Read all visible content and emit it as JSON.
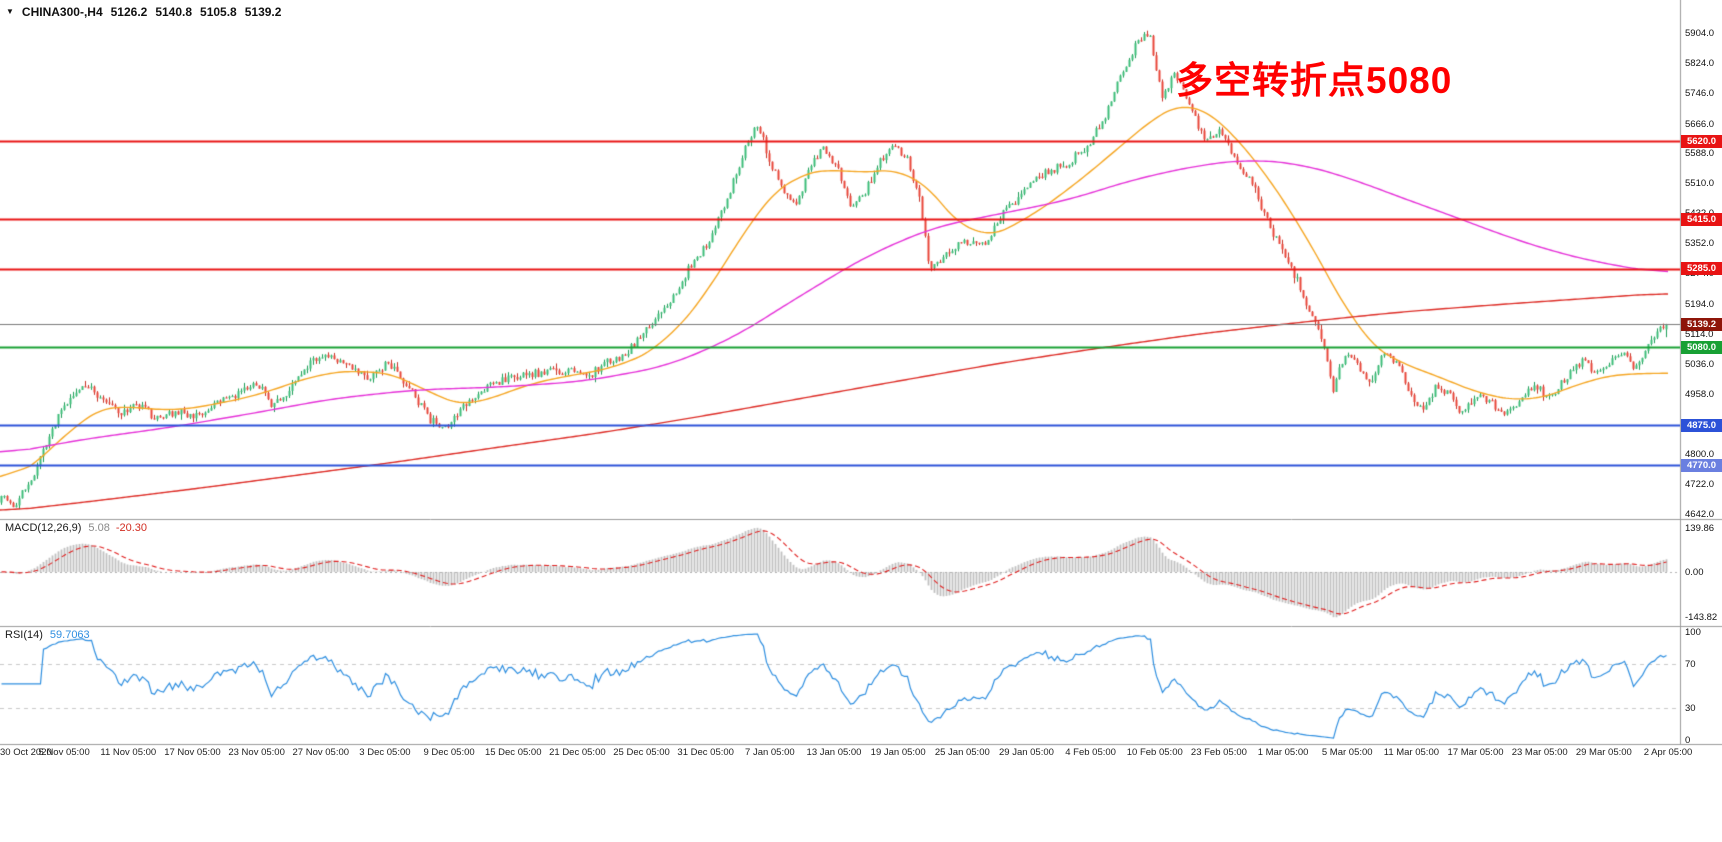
{
  "header": {
    "collapse_icon": "▼",
    "symbol": "CHINA300-,H4",
    "open": "5126.2",
    "high": "5140.8",
    "low": "5105.8",
    "close": "5139.2"
  },
  "annotation": {
    "text": "多空转折点5080",
    "color": "#ff0000"
  },
  "indicators": {
    "macd": {
      "label": "MACD(12,26,9)",
      "value_main": "5.08",
      "value_signal": "-20.30"
    },
    "rsi": {
      "label": "RSI(14)",
      "value": "59.7063"
    }
  },
  "chart_data": {
    "type": "candlestick",
    "title": "CHINA300-,H4",
    "timeframe": "H4",
    "last_ohlc": {
      "open": 5126.2,
      "high": 5140.8,
      "low": 5105.8,
      "close": 5139.2
    },
    "ylim": [
      4629,
      5985
    ],
    "y_ticks": [
      "5904.0",
      "5824.0",
      "5746.0",
      "5666.0",
      "5588.0",
      "5510.0",
      "5432.0",
      "5352.0",
      "5274.0",
      "5194.0",
      "5114.0",
      "5036.0",
      "4958.0",
      "4880.0",
      "4800.0",
      "4722.0",
      "4642.0"
    ],
    "x_labels": [
      "30 Oct 2020",
      "5 Nov 05:00",
      "11 Nov 05:00",
      "17 Nov 05:00",
      "23 Nov 05:00",
      "27 Nov 05:00",
      "3 Dec 05:00",
      "9 Dec 05:00",
      "15 Dec 05:00",
      "21 Dec 05:00",
      "25 Dec 05:00",
      "31 Dec 05:00",
      "7 Jan 05:00",
      "13 Jan 05:00",
      "19 Jan 05:00",
      "25 Jan 05:00",
      "29 Jan 05:00",
      "4 Feb 05:00",
      "10 Feb 05:00",
      "23 Feb 05:00",
      "1 Mar 05:00",
      "5 Mar 05:00",
      "11 Mar 05:00",
      "17 Mar 05:00",
      "23 Mar 05:00",
      "29 Mar 05:00",
      "2 Apr 05:00"
    ],
    "bar_count": 556,
    "price_waypoints": [
      [
        0.0,
        4700
      ],
      [
        0.008,
        4662
      ],
      [
        0.02,
        4748
      ],
      [
        0.035,
        4905
      ],
      [
        0.05,
        4985
      ],
      [
        0.062,
        4940
      ],
      [
        0.072,
        4905
      ],
      [
        0.082,
        4930
      ],
      [
        0.094,
        4888
      ],
      [
        0.105,
        4912
      ],
      [
        0.118,
        4898
      ],
      [
        0.132,
        4935
      ],
      [
        0.145,
        4965
      ],
      [
        0.152,
        4995
      ],
      [
        0.162,
        4932
      ],
      [
        0.172,
        4958
      ],
      [
        0.185,
        5038
      ],
      [
        0.198,
        5055
      ],
      [
        0.21,
        5028
      ],
      [
        0.22,
        4995
      ],
      [
        0.232,
        5040
      ],
      [
        0.245,
        4972
      ],
      [
        0.258,
        4885
      ],
      [
        0.268,
        4872
      ],
      [
        0.282,
        4945
      ],
      [
        0.295,
        4985
      ],
      [
        0.31,
        5000
      ],
      [
        0.325,
        5015
      ],
      [
        0.34,
        5020
      ],
      [
        0.352,
        5000
      ],
      [
        0.362,
        5035
      ],
      [
        0.375,
        5062
      ],
      [
        0.388,
        5130
      ],
      [
        0.4,
        5185
      ],
      [
        0.412,
        5280
      ],
      [
        0.425,
        5360
      ],
      [
        0.437,
        5480
      ],
      [
        0.448,
        5622
      ],
      [
        0.455,
        5662
      ],
      [
        0.462,
        5560
      ],
      [
        0.47,
        5482
      ],
      [
        0.478,
        5452
      ],
      [
        0.488,
        5578
      ],
      [
        0.495,
        5600
      ],
      [
        0.503,
        5545
      ],
      [
        0.51,
        5445
      ],
      [
        0.518,
        5482
      ],
      [
        0.527,
        5560
      ],
      [
        0.535,
        5605
      ],
      [
        0.545,
        5570
      ],
      [
        0.552,
        5455
      ],
      [
        0.558,
        5275
      ],
      [
        0.567,
        5330
      ],
      [
        0.578,
        5360
      ],
      [
        0.59,
        5350
      ],
      [
        0.602,
        5430
      ],
      [
        0.615,
        5495
      ],
      [
        0.628,
        5540
      ],
      [
        0.64,
        5562
      ],
      [
        0.652,
        5605
      ],
      [
        0.663,
        5680
      ],
      [
        0.672,
        5790
      ],
      [
        0.683,
        5885
      ],
      [
        0.69,
        5898
      ],
      [
        0.697,
        5738
      ],
      [
        0.705,
        5795
      ],
      [
        0.715,
        5700
      ],
      [
        0.723,
        5615
      ],
      [
        0.732,
        5642
      ],
      [
        0.742,
        5572
      ],
      [
        0.752,
        5500
      ],
      [
        0.762,
        5395
      ],
      [
        0.77,
        5320
      ],
      [
        0.778,
        5262
      ],
      [
        0.786,
        5175
      ],
      [
        0.794,
        5085
      ],
      [
        0.8,
        4968
      ],
      [
        0.808,
        5075
      ],
      [
        0.815,
        5030
      ],
      [
        0.822,
        4985
      ],
      [
        0.83,
        5065
      ],
      [
        0.838,
        5045
      ],
      [
        0.846,
        4955
      ],
      [
        0.855,
        4915
      ],
      [
        0.862,
        4985
      ],
      [
        0.87,
        4950
      ],
      [
        0.878,
        4905
      ],
      [
        0.886,
        4960
      ],
      [
        0.895,
        4935
      ],
      [
        0.903,
        4900
      ],
      [
        0.912,
        4945
      ],
      [
        0.922,
        4975
      ],
      [
        0.93,
        4945
      ],
      [
        0.94,
        5000
      ],
      [
        0.95,
        5045
      ],
      [
        0.958,
        5005
      ],
      [
        0.966,
        5035
      ],
      [
        0.974,
        5060
      ],
      [
        0.981,
        5020
      ],
      [
        0.99,
        5095
      ],
      [
        1.0,
        5139.2
      ]
    ],
    "moving_averages": [
      {
        "name": "fast-ma",
        "color": "#f5a623",
        "waypoints": [
          [
            0.0,
            4715
          ],
          [
            0.03,
            4800
          ],
          [
            0.05,
            4905
          ],
          [
            0.07,
            4930
          ],
          [
            0.1,
            4910
          ],
          [
            0.13,
            4930
          ],
          [
            0.16,
            4960
          ],
          [
            0.19,
            5010
          ],
          [
            0.22,
            5020
          ],
          [
            0.245,
            5000
          ],
          [
            0.265,
            4935
          ],
          [
            0.285,
            4925
          ],
          [
            0.31,
            4975
          ],
          [
            0.34,
            5005
          ],
          [
            0.37,
            5025
          ],
          [
            0.4,
            5090
          ],
          [
            0.43,
            5260
          ],
          [
            0.455,
            5450
          ],
          [
            0.475,
            5530
          ],
          [
            0.5,
            5550
          ],
          [
            0.525,
            5530
          ],
          [
            0.545,
            5560
          ],
          [
            0.565,
            5450
          ],
          [
            0.585,
            5355
          ],
          [
            0.61,
            5400
          ],
          [
            0.64,
            5490
          ],
          [
            0.67,
            5600
          ],
          [
            0.7,
            5710
          ],
          [
            0.715,
            5730
          ],
          [
            0.735,
            5660
          ],
          [
            0.755,
            5560
          ],
          [
            0.775,
            5430
          ],
          [
            0.795,
            5280
          ],
          [
            0.815,
            5110
          ],
          [
            0.835,
            5040
          ],
          [
            0.855,
            5020
          ],
          [
            0.875,
            4975
          ],
          [
            0.895,
            4950
          ],
          [
            0.915,
            4935
          ],
          [
            0.935,
            4960
          ],
          [
            0.955,
            5000
          ],
          [
            0.975,
            5010
          ],
          [
            1.0,
            5012
          ]
        ]
      },
      {
        "name": "mid-ma",
        "color": "#e531d8",
        "waypoints": [
          [
            0.0,
            4798
          ],
          [
            0.05,
            4838
          ],
          [
            0.1,
            4868
          ],
          [
            0.15,
            4905
          ],
          [
            0.2,
            4945
          ],
          [
            0.25,
            4968
          ],
          [
            0.3,
            4975
          ],
          [
            0.35,
            4990
          ],
          [
            0.4,
            5030
          ],
          [
            0.44,
            5105
          ],
          [
            0.48,
            5215
          ],
          [
            0.52,
            5320
          ],
          [
            0.56,
            5395
          ],
          [
            0.6,
            5430
          ],
          [
            0.64,
            5465
          ],
          [
            0.68,
            5520
          ],
          [
            0.72,
            5558
          ],
          [
            0.75,
            5572
          ],
          [
            0.78,
            5560
          ],
          [
            0.81,
            5522
          ],
          [
            0.84,
            5472
          ],
          [
            0.87,
            5425
          ],
          [
            0.9,
            5375
          ],
          [
            0.93,
            5332
          ],
          [
            0.96,
            5300
          ],
          [
            1.0,
            5272
          ]
        ]
      },
      {
        "name": "slow-ma",
        "color": "#dd2c26",
        "waypoints": [
          [
            0.0,
            4648
          ],
          [
            0.06,
            4678
          ],
          [
            0.12,
            4710
          ],
          [
            0.18,
            4745
          ],
          [
            0.24,
            4780
          ],
          [
            0.3,
            4818
          ],
          [
            0.36,
            4855
          ],
          [
            0.42,
            4898
          ],
          [
            0.48,
            4945
          ],
          [
            0.54,
            4992
          ],
          [
            0.6,
            5038
          ],
          [
            0.66,
            5078
          ],
          [
            0.72,
            5115
          ],
          [
            0.78,
            5145
          ],
          [
            0.84,
            5172
          ],
          [
            0.9,
            5192
          ],
          [
            0.95,
            5207
          ],
          [
            1.0,
            5222
          ]
        ]
      }
    ],
    "horizontal_levels": [
      {
        "value": 5620.0,
        "label": "5620.0",
        "color": "#e81414",
        "width": 1.8,
        "tag_bg": "#e81414"
      },
      {
        "value": 5415.0,
        "label": "5415.0",
        "color": "#e81414",
        "width": 1.8,
        "tag_bg": "#e81414"
      },
      {
        "value": 5285.0,
        "label": "5285.0",
        "color": "#e81414",
        "width": 1.8,
        "tag_bg": "#e81414"
      },
      {
        "value": 5080.0,
        "label": "5080.0",
        "color": "#18a034",
        "width": 1.8,
        "tag_bg": "#18a034"
      },
      {
        "value": 4875.0,
        "label": "4875.0",
        "color": "#2c52d8",
        "width": 2,
        "tag_bg": "#2c52d8"
      },
      {
        "value": 4770.0,
        "label": "4770.0",
        "color": "#2c52d8",
        "width": 2,
        "tag_bg": "#6a7fe0"
      }
    ],
    "current_price": {
      "value": 5139.2,
      "label": "5139.2",
      "line_color": "#7a7a7a",
      "tag_bg": "#8e1509"
    },
    "candle_colors": {
      "up_body": "#3dbd78",
      "up_wick": "#1f9e58",
      "down_body": "#e8463a",
      "down_wick": "#c93327"
    },
    "macd": {
      "params": [
        12,
        26,
        9
      ],
      "hist_color": "#c0c0c0",
      "signal_color": "#e02020",
      "y_ticks": [
        "139.86",
        "0.00",
        "-143.82"
      ],
      "hist_max": 139.86,
      "hist_min": -143.82
    },
    "rsi": {
      "period": 14,
      "color": "#2f8fe0",
      "levels": [
        70,
        30
      ],
      "y_ticks": [
        "100",
        "70",
        "30",
        "0"
      ],
      "last": 59.7063
    }
  }
}
